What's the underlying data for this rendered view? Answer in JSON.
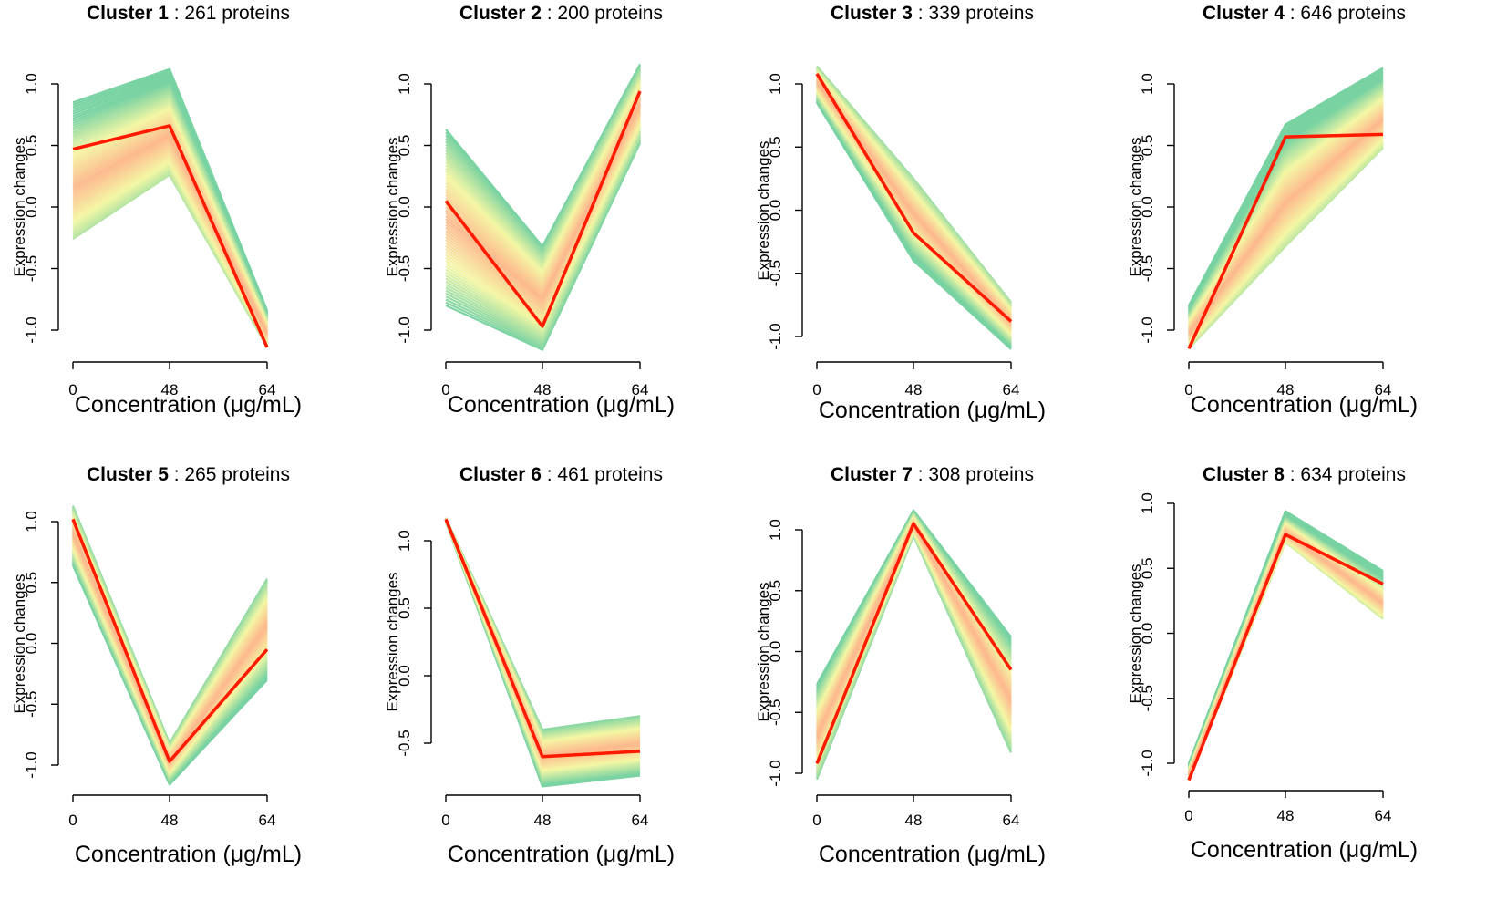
{
  "colors": {
    "centroid": "#ff1a00",
    "far": "#78d2a2",
    "mid": "#f4f7a4",
    "near": "#fdb98e",
    "axis": "#000000"
  },
  "chart_data": [
    {
      "type": "line",
      "title_bold": "Cluster 1",
      "title_rest": " : 261 proteins",
      "xlabel": "Concentration (μg/mL)",
      "ylabel": "Expression changes",
      "categories": [
        "0",
        "48",
        "64"
      ],
      "ylim": [
        -1.0,
        1.0
      ],
      "yticks": [
        "-1.0",
        "-0.5",
        "0.0",
        "0.5",
        "1.0"
      ],
      "ytick_values": [
        -1.0,
        -0.5,
        0.0,
        0.5,
        1.0
      ],
      "centroid": [
        0.47,
        0.66,
        -1.14
      ],
      "band_low": [
        -0.26,
        0.26,
        -1.14
      ],
      "band_high": [
        0.85,
        1.12,
        -0.84
      ]
    },
    {
      "type": "line",
      "title_bold": "Cluster 2",
      "title_rest": " : 200 proteins",
      "xlabel": "Concentration (μg/mL)",
      "ylabel": "Expression changes",
      "categories": [
        "0",
        "48",
        "64"
      ],
      "ylim": [
        -1.0,
        1.0
      ],
      "yticks": [
        "-1.0",
        "-0.5",
        "0.0",
        "0.5",
        "1.0"
      ],
      "ytick_values": [
        -1.0,
        -0.5,
        0.0,
        0.5,
        1.0
      ],
      "centroid": [
        0.05,
        -0.97,
        0.94
      ],
      "band_low": [
        -0.8,
        -1.16,
        0.52
      ],
      "band_high": [
        0.63,
        -0.32,
        1.16
      ]
    },
    {
      "type": "line",
      "title_bold": "Cluster 3",
      "title_rest": " : 339 proteins",
      "xlabel": "Concentration (μg/mL)",
      "ylabel": "Expression changes",
      "categories": [
        "0",
        "48",
        "64"
      ],
      "ylim": [
        -1.0,
        1.0
      ],
      "yticks": [
        "-1.0",
        "-0.5",
        "0.0",
        "0.5",
        "1.0"
      ],
      "ytick_values": [
        -1.0,
        -0.5,
        0.0,
        0.5,
        1.0
      ],
      "centroid": [
        1.08,
        -0.18,
        -0.88
      ],
      "band_low": [
        0.85,
        -0.4,
        -1.1
      ],
      "band_high": [
        1.14,
        0.25,
        -0.73
      ]
    },
    {
      "type": "line",
      "title_bold": "Cluster 4",
      "title_rest": " : 646 proteins",
      "xlabel": "Concentration (μg/mL)",
      "ylabel": "Expression changes",
      "categories": [
        "0",
        "48",
        "64"
      ],
      "ylim": [
        -1.0,
        1.0
      ],
      "yticks": [
        "-1.0",
        "-0.5",
        "0.0",
        "0.5",
        "1.0"
      ],
      "ytick_values": [
        -1.0,
        -0.5,
        0.0,
        0.5,
        1.0
      ],
      "centroid": [
        -1.15,
        0.57,
        0.59
      ],
      "band_low": [
        -1.15,
        -0.32,
        0.48
      ],
      "band_high": [
        -0.8,
        0.67,
        1.13
      ]
    },
    {
      "type": "line",
      "title_bold": "Cluster 5",
      "title_rest": " : 265 proteins",
      "xlabel": "Concentration (μg/mL)",
      "ylabel": "Expression changes",
      "categories": [
        "0",
        "48",
        "64"
      ],
      "ylim": [
        -1.0,
        1.0
      ],
      "yticks": [
        "-1.0",
        "-0.5",
        "0.0",
        "0.5",
        "1.0"
      ],
      "ytick_values": [
        -1.0,
        -0.5,
        0.0,
        0.5,
        1.0
      ],
      "centroid": [
        1.02,
        -0.97,
        -0.05
      ],
      "band_low": [
        0.64,
        -1.16,
        -0.3
      ],
      "band_high": [
        1.13,
        -0.82,
        0.53
      ]
    },
    {
      "type": "line",
      "title_bold": "Cluster 6",
      "title_rest": " : 461 proteins",
      "xlabel": "Concentration (μg/mL)",
      "ylabel": "Expression changes",
      "categories": [
        "0",
        "48",
        "64"
      ],
      "ylim": [
        -0.5,
        1.0
      ],
      "yticks": [
        "-0.5",
        "0.0",
        "0.5",
        "1.0"
      ],
      "ytick_values": [
        -0.5,
        0.0,
        0.5,
        1.0
      ],
      "centroid": [
        1.16,
        -0.6,
        -0.56
      ],
      "band_low": [
        1.14,
        -0.82,
        -0.74
      ],
      "band_high": [
        1.17,
        -0.4,
        -0.3
      ]
    },
    {
      "type": "line",
      "title_bold": "Cluster 7",
      "title_rest": " : 308 proteins",
      "xlabel": "Concentration (μg/mL)",
      "ylabel": "Expression changes",
      "categories": [
        "0",
        "48",
        "64"
      ],
      "ylim": [
        -1.0,
        1.0
      ],
      "yticks": [
        "-1.0",
        "-0.5",
        "0.0",
        "0.5",
        "1.0"
      ],
      "ytick_values": [
        -1.0,
        -0.5,
        0.0,
        0.5,
        1.0
      ],
      "centroid": [
        -0.92,
        1.05,
        -0.15
      ],
      "band_low": [
        -1.05,
        0.95,
        -0.83
      ],
      "band_high": [
        -0.27,
        1.16,
        0.12
      ]
    },
    {
      "type": "line",
      "title_bold": "Cluster 8",
      "title_rest": " : 634 proteins",
      "xlabel": "Concentration (μg/mL)",
      "ylabel": "Expression changes",
      "categories": [
        "0",
        "48",
        "64"
      ],
      "ylim": [
        -1.0,
        1.0
      ],
      "yticks": [
        "-1.0",
        "-0.5",
        "0.0",
        "0.5",
        "1.0"
      ],
      "ytick_values": [
        -1.0,
        -0.5,
        0.0,
        0.5,
        1.0
      ],
      "centroid": [
        -1.13,
        0.76,
        0.38
      ],
      "band_low": [
        -1.13,
        0.7,
        0.11
      ],
      "band_high": [
        -1.0,
        0.94,
        0.48
      ]
    }
  ]
}
